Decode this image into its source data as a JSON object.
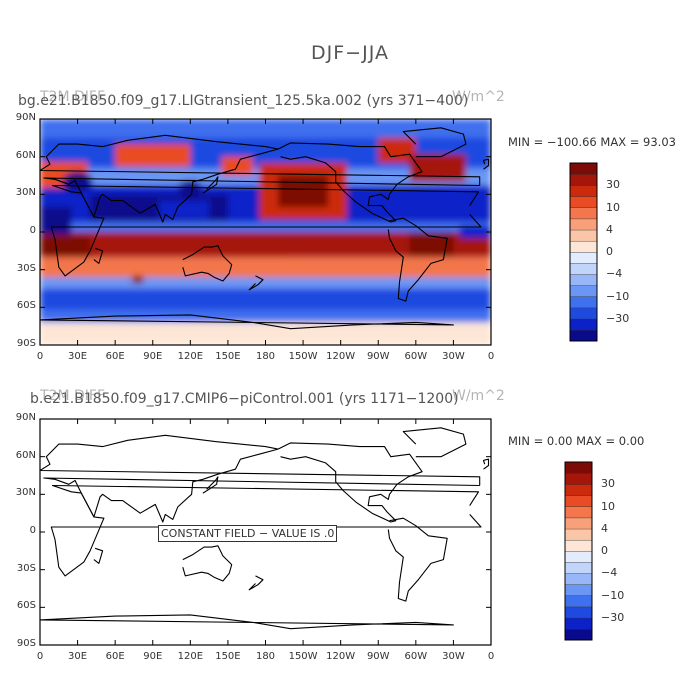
{
  "figure_title": "DJF−JJA",
  "colorbar": {
    "colors": [
      "#0a0a8c",
      "#0c22c8",
      "#1f4ae0",
      "#3f70ee",
      "#6a96f4",
      "#97b7f8",
      "#c1d5fb",
      "#e2ecfd",
      "#fde6d6",
      "#fbc6a8",
      "#f8a07a",
      "#f3764c",
      "#e94b24",
      "#cc2a0c",
      "#a51509",
      "#7c0a06"
    ],
    "labels": [
      "−30",
      "−10",
      "−4",
      "0",
      "4",
      "10",
      "30"
    ]
  },
  "chart_data": [
    {
      "type": "heatmap",
      "title_left": "bg.e21.B1850.f09_g17.LIGtransient_125.5ka.002 (yrs 371−400)",
      "title_overlap": "T2M DIFF",
      "title_right": "W/m^2",
      "stats": {
        "min_label": "MIN =",
        "min": "−100.66",
        "max_label": "MAX =",
        "max": "93.03"
      },
      "x_ticks": [
        "0",
        "30E",
        "60E",
        "90E",
        "120E",
        "150E",
        "180",
        "150W",
        "120W",
        "90W",
        "60W",
        "30W",
        "0"
      ],
      "y_ticks": [
        "90N",
        "60N",
        "30N",
        "0",
        "30S",
        "60S",
        "90S"
      ],
      "xlim": [
        0,
        360
      ],
      "ylim": [
        -90,
        90
      ],
      "field": "map of DJF minus JJA difference, red = positive, blue = negative"
    },
    {
      "type": "heatmap",
      "title_left": "b.e21.B1850.f09_g17.CMIP6−piControl.001 (yrs 1171−1200)",
      "title_overlap": "T2M DIFF",
      "title_right": "W/m^2",
      "stats": {
        "min_label": "MIN =",
        "min": "0.00",
        "max_label": "MAX =",
        "max": "0.00"
      },
      "x_ticks": [
        "0",
        "30E",
        "60E",
        "90E",
        "120E",
        "150E",
        "180",
        "150W",
        "120W",
        "90W",
        "60W",
        "30W",
        "0"
      ],
      "y_ticks": [
        "90N",
        "60N",
        "30N",
        "0",
        "30S",
        "60S",
        "90S"
      ],
      "xlim": [
        0,
        360
      ],
      "ylim": [
        -90,
        90
      ],
      "annotation": "CONSTANT FIELD − VALUE IS .0"
    }
  ]
}
